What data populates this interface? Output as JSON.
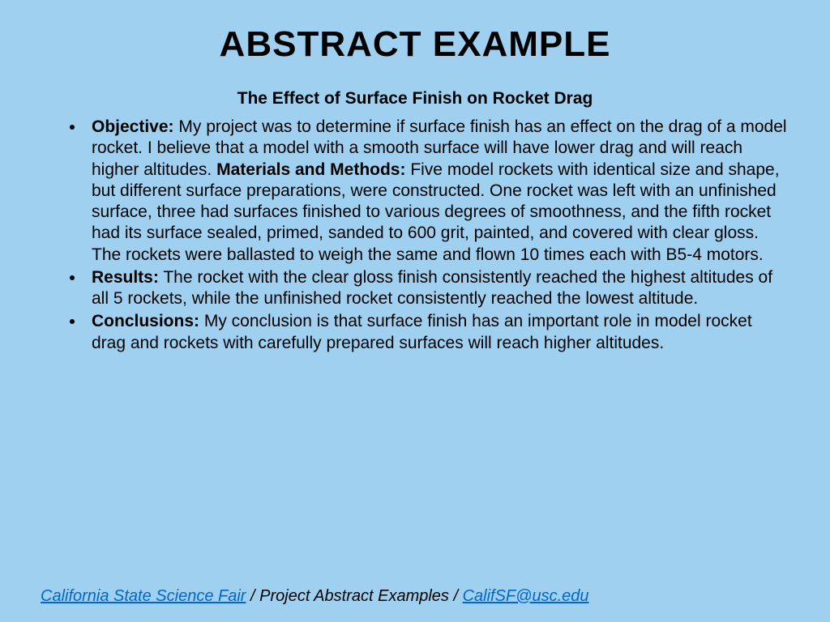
{
  "slide": {
    "title": "ABSTRACT EXAMPLE",
    "subtitle": "The Effect of Surface Finish on Rocket Drag",
    "bullets": [
      {
        "sections": [
          {
            "label": "Objective:",
            "text": " My project was to determine if surface finish has an effect on the drag of a model rocket. I believe that a model with a smooth surface will have lower drag and will reach higher altitudes. "
          },
          {
            "label": "Materials and Methods:",
            "text": " Five model rockets with identical size and shape, but different surface preparations, were constructed. One rocket was left with an unfinished surface, three had surfaces finished to various degrees of smoothness, and the fifth rocket had its surface sealed, primed, sanded to 600 grit, painted, and covered with clear gloss. The rockets were ballasted to weigh the same and flown 10 times each with B5-4 motors."
          }
        ]
      },
      {
        "sections": [
          {
            "label": "Results:",
            "text": " The rocket with the clear gloss finish consistently reached the highest altitudes of all 5 rockets, while the unfinished rocket consistently reached the lowest altitude."
          }
        ]
      },
      {
        "sections": [
          {
            "label": "Conclusions:",
            "text": " My conclusion is that surface finish has an important role in model rocket drag and rockets with carefully prepared surfaces will reach higher altitudes."
          }
        ]
      }
    ],
    "footer": {
      "link1": "California State Science Fair",
      "separator": " / Project Abstract Examples / ",
      "link2": "CalifSF@usc.edu"
    }
  },
  "styling": {
    "background_color": "#a0d0f0",
    "text_color": "#000000",
    "link_color": "#0066cc",
    "title_fontsize": 44,
    "subtitle_fontsize": 21,
    "body_fontsize": 21,
    "footer_fontsize": 20,
    "font_family": "Arial"
  }
}
